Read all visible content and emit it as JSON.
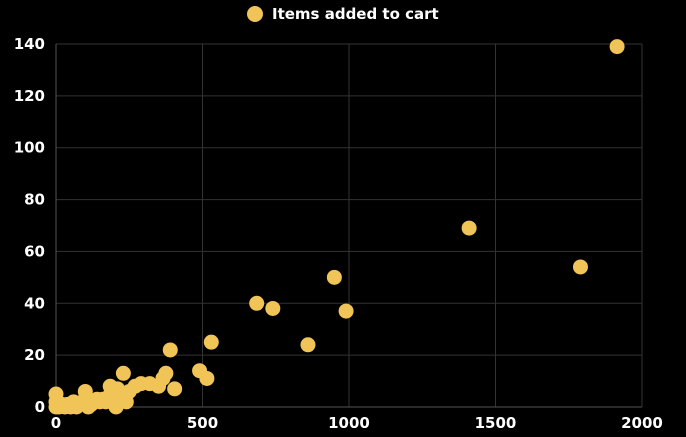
{
  "chart_data": {
    "type": "scatter",
    "title": "",
    "xlabel": "",
    "ylabel": "",
    "legend": {
      "position": "top-center",
      "label": "Items added to cart"
    },
    "xlim": [
      0,
      2000
    ],
    "ylim": [
      0,
      140
    ],
    "x_ticks": [
      "0",
      "500",
      "1000",
      "1500",
      "2000"
    ],
    "y_ticks": [
      "0",
      "20",
      "40",
      "60",
      "80",
      "100",
      "120",
      "140"
    ],
    "grid": true,
    "background": "#000000",
    "grid_color": "#333333",
    "point_color": "#F0C456",
    "series": [
      {
        "name": "Items added to cart",
        "points": [
          [
            0,
            0
          ],
          [
            0,
            2
          ],
          [
            0,
            5
          ],
          [
            10,
            0
          ],
          [
            20,
            1
          ],
          [
            30,
            0
          ],
          [
            40,
            1
          ],
          [
            50,
            0
          ],
          [
            60,
            2
          ],
          [
            70,
            0
          ],
          [
            80,
            1
          ],
          [
            90,
            2
          ],
          [
            100,
            3
          ],
          [
            100,
            6
          ],
          [
            110,
            0
          ],
          [
            120,
            1
          ],
          [
            130,
            2
          ],
          [
            140,
            3
          ],
          [
            150,
            2
          ],
          [
            160,
            3
          ],
          [
            170,
            2
          ],
          [
            180,
            4
          ],
          [
            185,
            8
          ],
          [
            190,
            3
          ],
          [
            200,
            5
          ],
          [
            205,
            0
          ],
          [
            210,
            7
          ],
          [
            220,
            3
          ],
          [
            230,
            13
          ],
          [
            240,
            2
          ],
          [
            250,
            6
          ],
          [
            270,
            8
          ],
          [
            290,
            9
          ],
          [
            320,
            9
          ],
          [
            350,
            8
          ],
          [
            365,
            11
          ],
          [
            375,
            13
          ],
          [
            390,
            22
          ],
          [
            405,
            7
          ],
          [
            490,
            14
          ],
          [
            515,
            11
          ],
          [
            530,
            25
          ],
          [
            685,
            40
          ],
          [
            740,
            38
          ],
          [
            860,
            24
          ],
          [
            950,
            50
          ],
          [
            990,
            37
          ],
          [
            1410,
            69
          ],
          [
            1790,
            54
          ],
          [
            1915,
            139
          ]
        ]
      }
    ]
  }
}
